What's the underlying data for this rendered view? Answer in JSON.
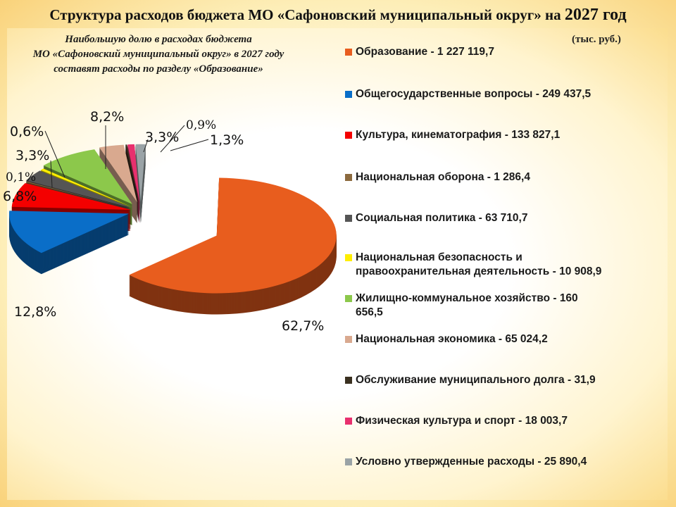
{
  "title": "Структура расходов бюджета  МО «Сафоновский муниципальный округ» на",
  "title_year": "2027 год",
  "subtitle": [
    "Наибольшую долю в расходах бюджета",
    "МО «Сафоновский муниципальный округ» в 2027 году",
    "составят расходы по разделу «Образование»"
  ],
  "units": "(тыс. руб.)",
  "chart_data": {
    "type": "pie",
    "style": "3d-exploded",
    "legend_position": "right",
    "slices": [
      {
        "legend": "Образование - 1 227 119,7",
        "value": 1227119.7,
        "label": "62,7%",
        "color": "#e85d1e"
      },
      {
        "legend": "Общегосударственные вопросы - 249 437,5",
        "value": 249437.5,
        "label": "12,8%",
        "color": "#0a6ec8"
      },
      {
        "legend": "Культура, кинематография - 133 827,1",
        "value": 133827.1,
        "label": "6,8%",
        "color": "#f40000"
      },
      {
        "legend": "Национальная оборона  - 1 286,4",
        "value": 1286.4,
        "label": "0,1%",
        "color": "#8c6a3e"
      },
      {
        "legend": "Социальная политика - 63 710,7",
        "value": 63710.7,
        "label": "3,3%",
        "color": "#555555"
      },
      {
        "legend": "Национальная безопасность и правоохранительная деятельность -  10 908,9",
        "value": 10908.9,
        "label": "0,6%",
        "color": "#ffee00"
      },
      {
        "legend": "Жилищно-коммунальное хозяйство - 160 656,5",
        "value": 160656.5,
        "label": "8,2%",
        "color": "#8cc84b"
      },
      {
        "legend": "Национальная экономика - 65 024,2",
        "value": 65024.2,
        "label": "3,3%",
        "color": "#d9a98f"
      },
      {
        "legend": "Обслуживание муниципального  долга - 31,9",
        "value": 31.9,
        "label": "",
        "color": "#3a3020"
      },
      {
        "legend": "Физическая культура и спорт - 18 003,7",
        "value": 18003.7,
        "label": "0,9%",
        "color": "#e8306e"
      },
      {
        "legend": "Условно утвержденные расходы - 25 890,4",
        "value": 25890.4,
        "label": "1,3%",
        "color": "#9aa3a6"
      }
    ]
  }
}
